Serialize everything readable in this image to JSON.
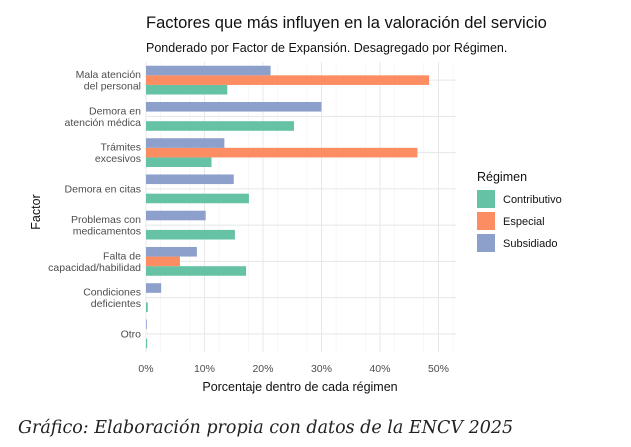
{
  "chart_data": {
    "type": "bar",
    "orientation": "horizontal",
    "title": "Factores que más influyen en la valoración del servicio",
    "subtitle": "Ponderado por Factor de Expansión. Desagregado por Régimen.",
    "xlabel": "Porcentaje dentro de cada régimen",
    "ylabel": "Factor",
    "xlim": [
      0,
      0.53
    ],
    "xticks": [
      0,
      0.1,
      0.2,
      0.3,
      0.4,
      0.5
    ],
    "xtick_labels": [
      "0%",
      "10%",
      "20%",
      "30%",
      "40%",
      "50%"
    ],
    "grid": true,
    "legend_position": "right",
    "legend_title": "Régimen",
    "categories": [
      [
        "Mala atención",
        "del personal"
      ],
      [
        "Demora en",
        "atención médica"
      ],
      [
        "Trámites",
        "excesivos"
      ],
      [
        "Demora en citas"
      ],
      [
        "Problemas con",
        "medicamentos"
      ],
      [
        "Falta de",
        "capacidad/habilidad"
      ],
      [
        "Condiciones",
        "deficientes"
      ],
      [
        "Otro"
      ]
    ],
    "series": [
      {
        "name": "Contributivo",
        "color": "#66c2a5",
        "values": [
          0.139,
          0.253,
          0.112,
          0.176,
          0.152,
          0.171,
          0.003,
          0.002
        ]
      },
      {
        "name": "Especial",
        "color": "#fc8d62",
        "values": [
          0.484,
          null,
          0.464,
          null,
          null,
          0.058,
          null,
          null
        ]
      },
      {
        "name": "Subsidiado",
        "color": "#8da0cb",
        "values": [
          0.213,
          0.3,
          0.134,
          0.15,
          0.102,
          0.087,
          0.026,
          0.001
        ]
      }
    ]
  },
  "caption": "Gráfico: Elaboración propia con datos de la ENCV 2025"
}
